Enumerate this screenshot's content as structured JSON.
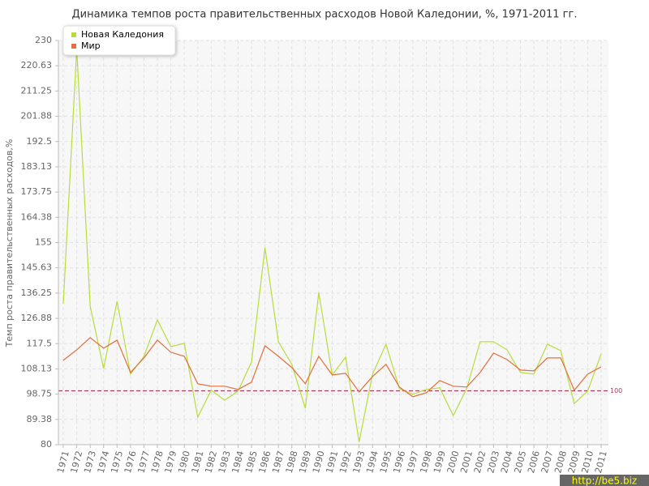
{
  "chart_data": {
    "type": "line",
    "title": "Динамика темпов роста правительственных расходов Новой Каледонии, %, 1971-2011 гг.",
    "y_label": "Темп роста правительственных расходов,%",
    "categories": [
      "1971",
      "1972",
      "1973",
      "1974",
      "1975",
      "1976",
      "1977",
      "1978",
      "1979",
      "1980",
      "1981",
      "1982",
      "1983",
      "1984",
      "1985",
      "1986",
      "1987",
      "1988",
      "1989",
      "1990",
      "1991",
      "1992",
      "1993",
      "1994",
      "1995",
      "1996",
      "1997",
      "1998",
      "1999",
      "2000",
      "2001",
      "2002",
      "2003",
      "2004",
      "2005",
      "2006",
      "2007",
      "2008",
      "2009",
      "2010",
      "2011"
    ],
    "series": [
      {
        "name": "Новая Каледония",
        "color": "#b8dc3c",
        "values": [
          132.3,
          227,
          131.4,
          108.3,
          133.2,
          106.2,
          112.8,
          126.3,
          116.4,
          117.6,
          90.2,
          100.2,
          96.5,
          99.9,
          110.7,
          153.1,
          118.2,
          109.8,
          93.5,
          136.5,
          105.9,
          112.5,
          81,
          106.2,
          117.3,
          100.8,
          98.7,
          100.5,
          101.1,
          90.8,
          100.8,
          118.2,
          118.2,
          115.2,
          106.8,
          106.2,
          117.3,
          114.9,
          95.3,
          99.9,
          113.7
        ]
      },
      {
        "name": "Мир",
        "color": "#e0703c",
        "values": [
          111.3,
          115.2,
          119.7,
          115.8,
          118.8,
          106.8,
          112.2,
          118.8,
          114.3,
          112.8,
          102.6,
          101.7,
          101.7,
          100.5,
          103.2,
          116.7,
          112.8,
          108.6,
          102.6,
          112.8,
          105.9,
          106.5,
          99.6,
          105.3,
          109.8,
          101.4,
          97.8,
          99.3,
          103.8,
          101.7,
          101.4,
          106.8,
          114,
          111.6,
          107.7,
          107.4,
          112.2,
          112.2,
          100.2,
          106.2,
          108.9
        ]
      }
    ],
    "ylim": [
      80,
      230
    ],
    "yticks": [
      80,
      89.38,
      98.75,
      108.13,
      117.5,
      126.88,
      136.25,
      145.63,
      155,
      164.38,
      173.75,
      183.13,
      192.5,
      201.88,
      211.25,
      220.63,
      230
    ],
    "grid": true,
    "legend": "top-left",
    "reference_line": 100,
    "reference_color": "#a04060",
    "watermark": "http://be5.biz"
  }
}
